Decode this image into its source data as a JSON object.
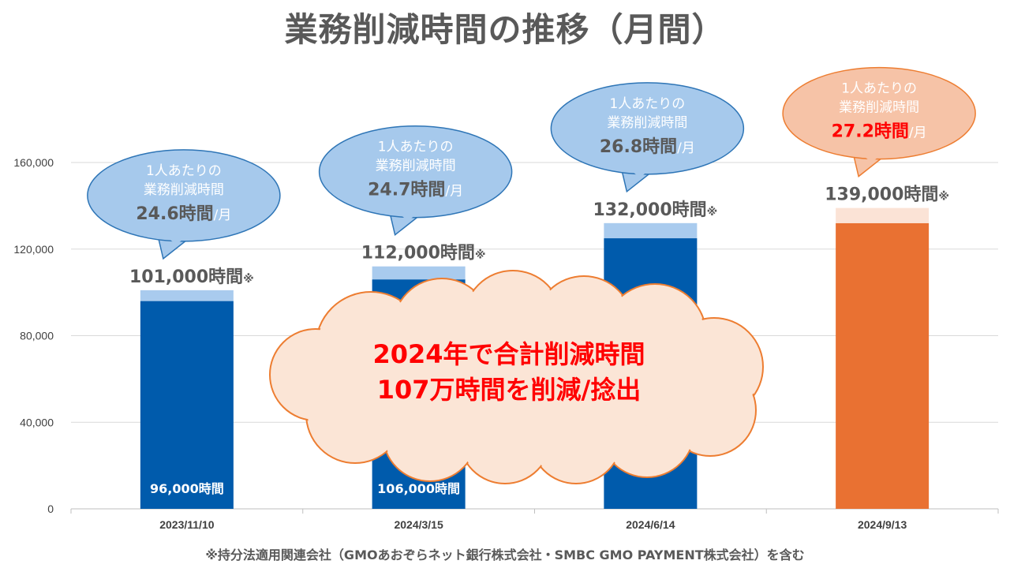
{
  "title": "業務削減時間の推移（月間）",
  "footnote": "※持分法適用関連会社（GMOあおぞらネット銀行株式会社・SMBC GMO PAYMENT株式会社）を含む",
  "colors": {
    "bar_base": "#005bac",
    "bar_extra": "#a9cbee",
    "bar_highlight": "#e97132",
    "bar_highlight_extra": "#fbe3d6",
    "bubble_blue_fill": "#a6c9ec",
    "bubble_blue_stroke": "#2e75b6",
    "bubble_orange_fill": "#f6c3a7",
    "bubble_orange_stroke": "#ed7d31",
    "cloud_fill": "#fbe5d6",
    "cloud_stroke": "#ed7d31",
    "cloud_text": "#ff0000",
    "grid": "#d9d9d9"
  },
  "chart_data": {
    "type": "bar",
    "stacked": true,
    "categories": [
      "2023/11/10",
      "2024/3/15",
      "2024/6/14",
      "2024/9/13"
    ],
    "series": [
      {
        "values": [
          96000,
          106000,
          125000,
          132000
        ]
      },
      {
        "values": [
          5000,
          6000,
          7000,
          7000
        ]
      }
    ],
    "totals": [
      101000,
      112000,
      132000,
      139000
    ],
    "ylim": [
      0,
      160000
    ],
    "yticks": [
      0,
      40000,
      80000,
      120000,
      160000
    ],
    "ytick_labels": [
      "0",
      "40,000",
      "80,000",
      "120,000",
      "160,000"
    ],
    "grid": true,
    "highlight_index": 3,
    "total_labels": [
      "101,000時間",
      "112,000時間",
      "132,000時間",
      "139,000時間"
    ],
    "total_mark": "※",
    "base_labels": [
      "96,000時間",
      "106,000時間",
      "",
      ""
    ],
    "bubbles": [
      {
        "line1": "1人あたりの",
        "line2": "業務削減時間",
        "value": "24.6時間",
        "unit": "/月"
      },
      {
        "line1": "1人あたりの",
        "line2": "業務削減時間",
        "value": "24.7時間",
        "unit": "/月"
      },
      {
        "line1": "1人あたりの",
        "line2": "業務削減時間",
        "value": "26.8時間",
        "unit": "/月"
      },
      {
        "line1": "1人あたりの",
        "line2": "業務削減時間",
        "value": "27.2時間",
        "unit": "/月"
      }
    ],
    "cloud": {
      "line1": "2024年で合計削減時間",
      "line2": "107万時間を削減/捻出"
    }
  }
}
